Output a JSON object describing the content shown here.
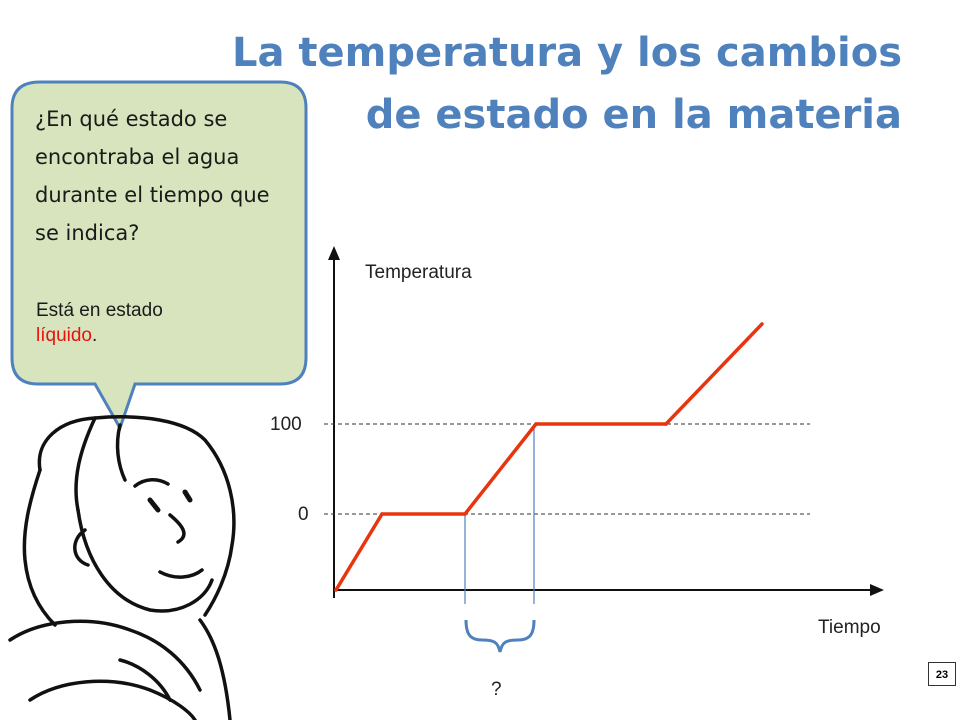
{
  "slide": {
    "title": "La temperatura y los cambios de estado en la materia",
    "page_number": "23"
  },
  "bubble": {
    "question": "¿En qué estado se encontraba el agua durante el tiempo que se indica?",
    "answer_prefix": "Está en estado ",
    "answer_highlight": "líquido",
    "answer_suffix": ".",
    "fill_color": "#d7e4bd",
    "border_color": "#4f81bd",
    "highlight_color": "#e8120c"
  },
  "chart_data": {
    "type": "line",
    "ylabel": "Temperatura",
    "xlabel": "Tiempo",
    "yticks": [
      "100",
      "0"
    ],
    "reference_lines": [
      100,
      0
    ],
    "bracket_label": "?",
    "line_color": "#e8350f",
    "segments": [
      "heating-solid",
      "melting-plateau-0",
      "heating-liquid",
      "boiling-plateau-100",
      "heating-gas"
    ]
  }
}
